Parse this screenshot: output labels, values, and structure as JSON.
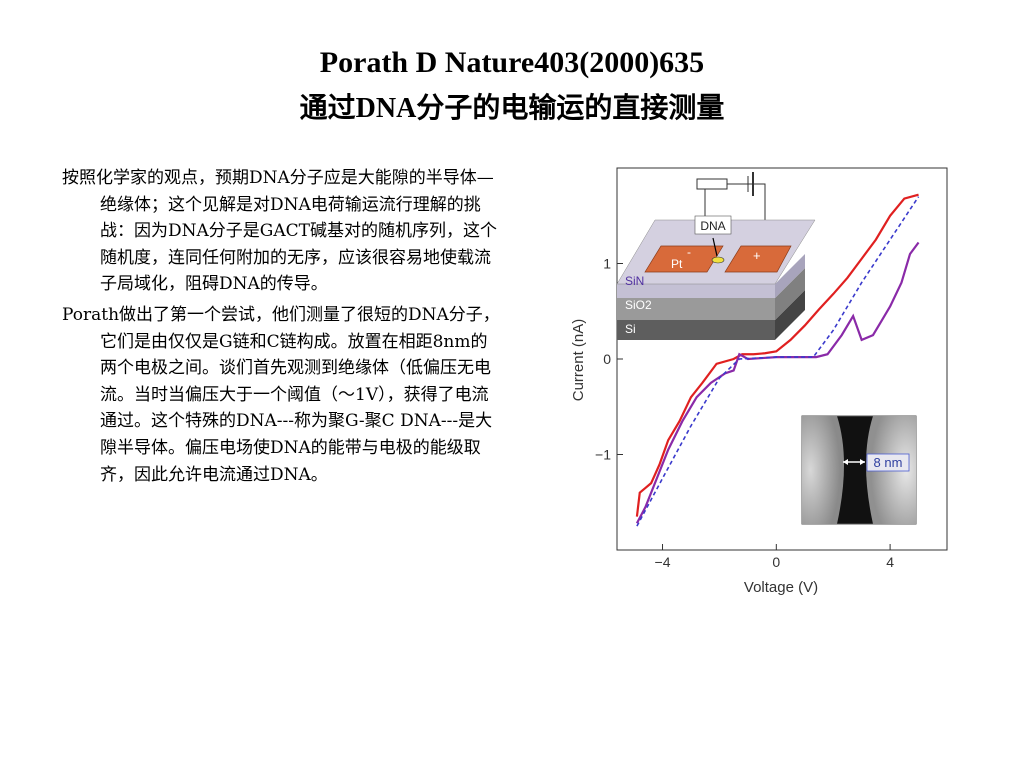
{
  "title_line1": "Porath D Nature403(2000)635",
  "title_line2": "通过DNA分子的电输运的直接测量",
  "paragraphs": [
    "按照化学家的观点，预期DNA分子应是大能隙的半导体—绝缘体；这个见解是对DNA电荷输运流行理解的挑战：因为DNA分子是GACT碱基对的随机序列，这个随机度，连同任何附加的无序，应该很容易地使载流子局域化，阻碍DNA的传导。",
    "Porath做出了第一个尝试，他们测量了很短的DNA分子，它们是由仅仅是G链和C链构成。放置在相距8nm的两个电极之间。谈们首先观测到绝缘体（低偏压无电流。当时当偏压大于一个阈值（～1V），获得了电流通过。这个特殊的DNA---称为聚G-聚C DNA---是大隙半导体。偏压电场使DNA的能带与电极的能级取齐，因此允许电流通过DNA。"
  ],
  "figure": {
    "inset_device": {
      "dna_label": "DNA",
      "pt_label": "Pt",
      "minus_label": "-",
      "plus_label": "+",
      "layer_labels": [
        "SiN",
        "SiO2",
        "Si"
      ],
      "colors": {
        "pt": "#d86a3a",
        "sin": "#b8b4cc",
        "sio2": "#9a9a9a",
        "si": "#5e5e5e"
      }
    },
    "inset_image": {
      "gap_label": "8 nm"
    }
  },
  "chart_data": {
    "type": "line",
    "xlabel": "Voltage (V)",
    "ylabel": "Current (nA)",
    "xlim": [
      -5.6,
      6
    ],
    "ylim": [
      -2.0,
      2.0
    ],
    "xticks": [
      -4,
      0,
      4
    ],
    "yticks": [
      -1,
      0,
      1
    ],
    "xtick_labels": [
      "−4",
      "0",
      "4"
    ],
    "ytick_labels": [
      "−1",
      "0",
      "1"
    ],
    "series": [
      {
        "color": "#e02020",
        "dash": "",
        "points": [
          [
            -4.9,
            -1.65
          ],
          [
            -4.8,
            -1.4
          ],
          [
            -4.6,
            -1.35
          ],
          [
            -4.4,
            -1.3
          ],
          [
            -4.1,
            -1.1
          ],
          [
            -3.8,
            -0.85
          ],
          [
            -3.4,
            -0.65
          ],
          [
            -3.0,
            -0.4
          ],
          [
            -2.6,
            -0.25
          ],
          [
            -2.1,
            -0.05
          ],
          [
            -1.5,
            -0.0
          ],
          [
            -1.2,
            0.05
          ],
          [
            -0.8,
            0.05
          ],
          [
            -0.4,
            0.06
          ],
          [
            0.0,
            0.08
          ],
          [
            0.5,
            0.2
          ],
          [
            1.0,
            0.35
          ],
          [
            1.5,
            0.52
          ],
          [
            2.0,
            0.68
          ],
          [
            2.5,
            0.85
          ],
          [
            3.0,
            1.05
          ],
          [
            3.5,
            1.25
          ],
          [
            4.0,
            1.5
          ],
          [
            4.5,
            1.68
          ],
          [
            5.0,
            1.72
          ]
        ]
      },
      {
        "color": "#8a2aa8",
        "dash": "",
        "points": [
          [
            -4.9,
            -1.72
          ],
          [
            -4.6,
            -1.55
          ],
          [
            -4.2,
            -1.25
          ],
          [
            -3.8,
            -0.95
          ],
          [
            -3.3,
            -0.65
          ],
          [
            -2.8,
            -0.4
          ],
          [
            -2.3,
            -0.25
          ],
          [
            -1.8,
            -0.15
          ],
          [
            -1.5,
            -0.12
          ],
          [
            -1.3,
            0.05
          ],
          [
            -1.0,
            0.0
          ],
          [
            -0.5,
            0.01
          ],
          [
            0.0,
            0.02
          ],
          [
            0.8,
            0.02
          ],
          [
            1.4,
            0.02
          ],
          [
            1.8,
            0.05
          ],
          [
            2.3,
            0.25
          ],
          [
            2.7,
            0.45
          ],
          [
            3.0,
            0.2
          ],
          [
            3.4,
            0.25
          ],
          [
            3.7,
            0.4
          ],
          [
            4.0,
            0.55
          ],
          [
            4.4,
            0.8
          ],
          [
            4.7,
            1.1
          ],
          [
            5.0,
            1.22
          ]
        ]
      },
      {
        "color": "#3a3acc",
        "dash": "4 3",
        "points": [
          [
            -4.9,
            -1.75
          ],
          [
            -4.0,
            -1.25
          ],
          [
            -3.0,
            -0.7
          ],
          [
            -2.0,
            -0.2
          ],
          [
            -1.3,
            0.0
          ],
          [
            0.0,
            0.02
          ],
          [
            1.3,
            0.02
          ],
          [
            2.0,
            0.3
          ],
          [
            3.0,
            0.8
          ],
          [
            4.0,
            1.25
          ],
          [
            5.0,
            1.7
          ]
        ]
      }
    ]
  }
}
